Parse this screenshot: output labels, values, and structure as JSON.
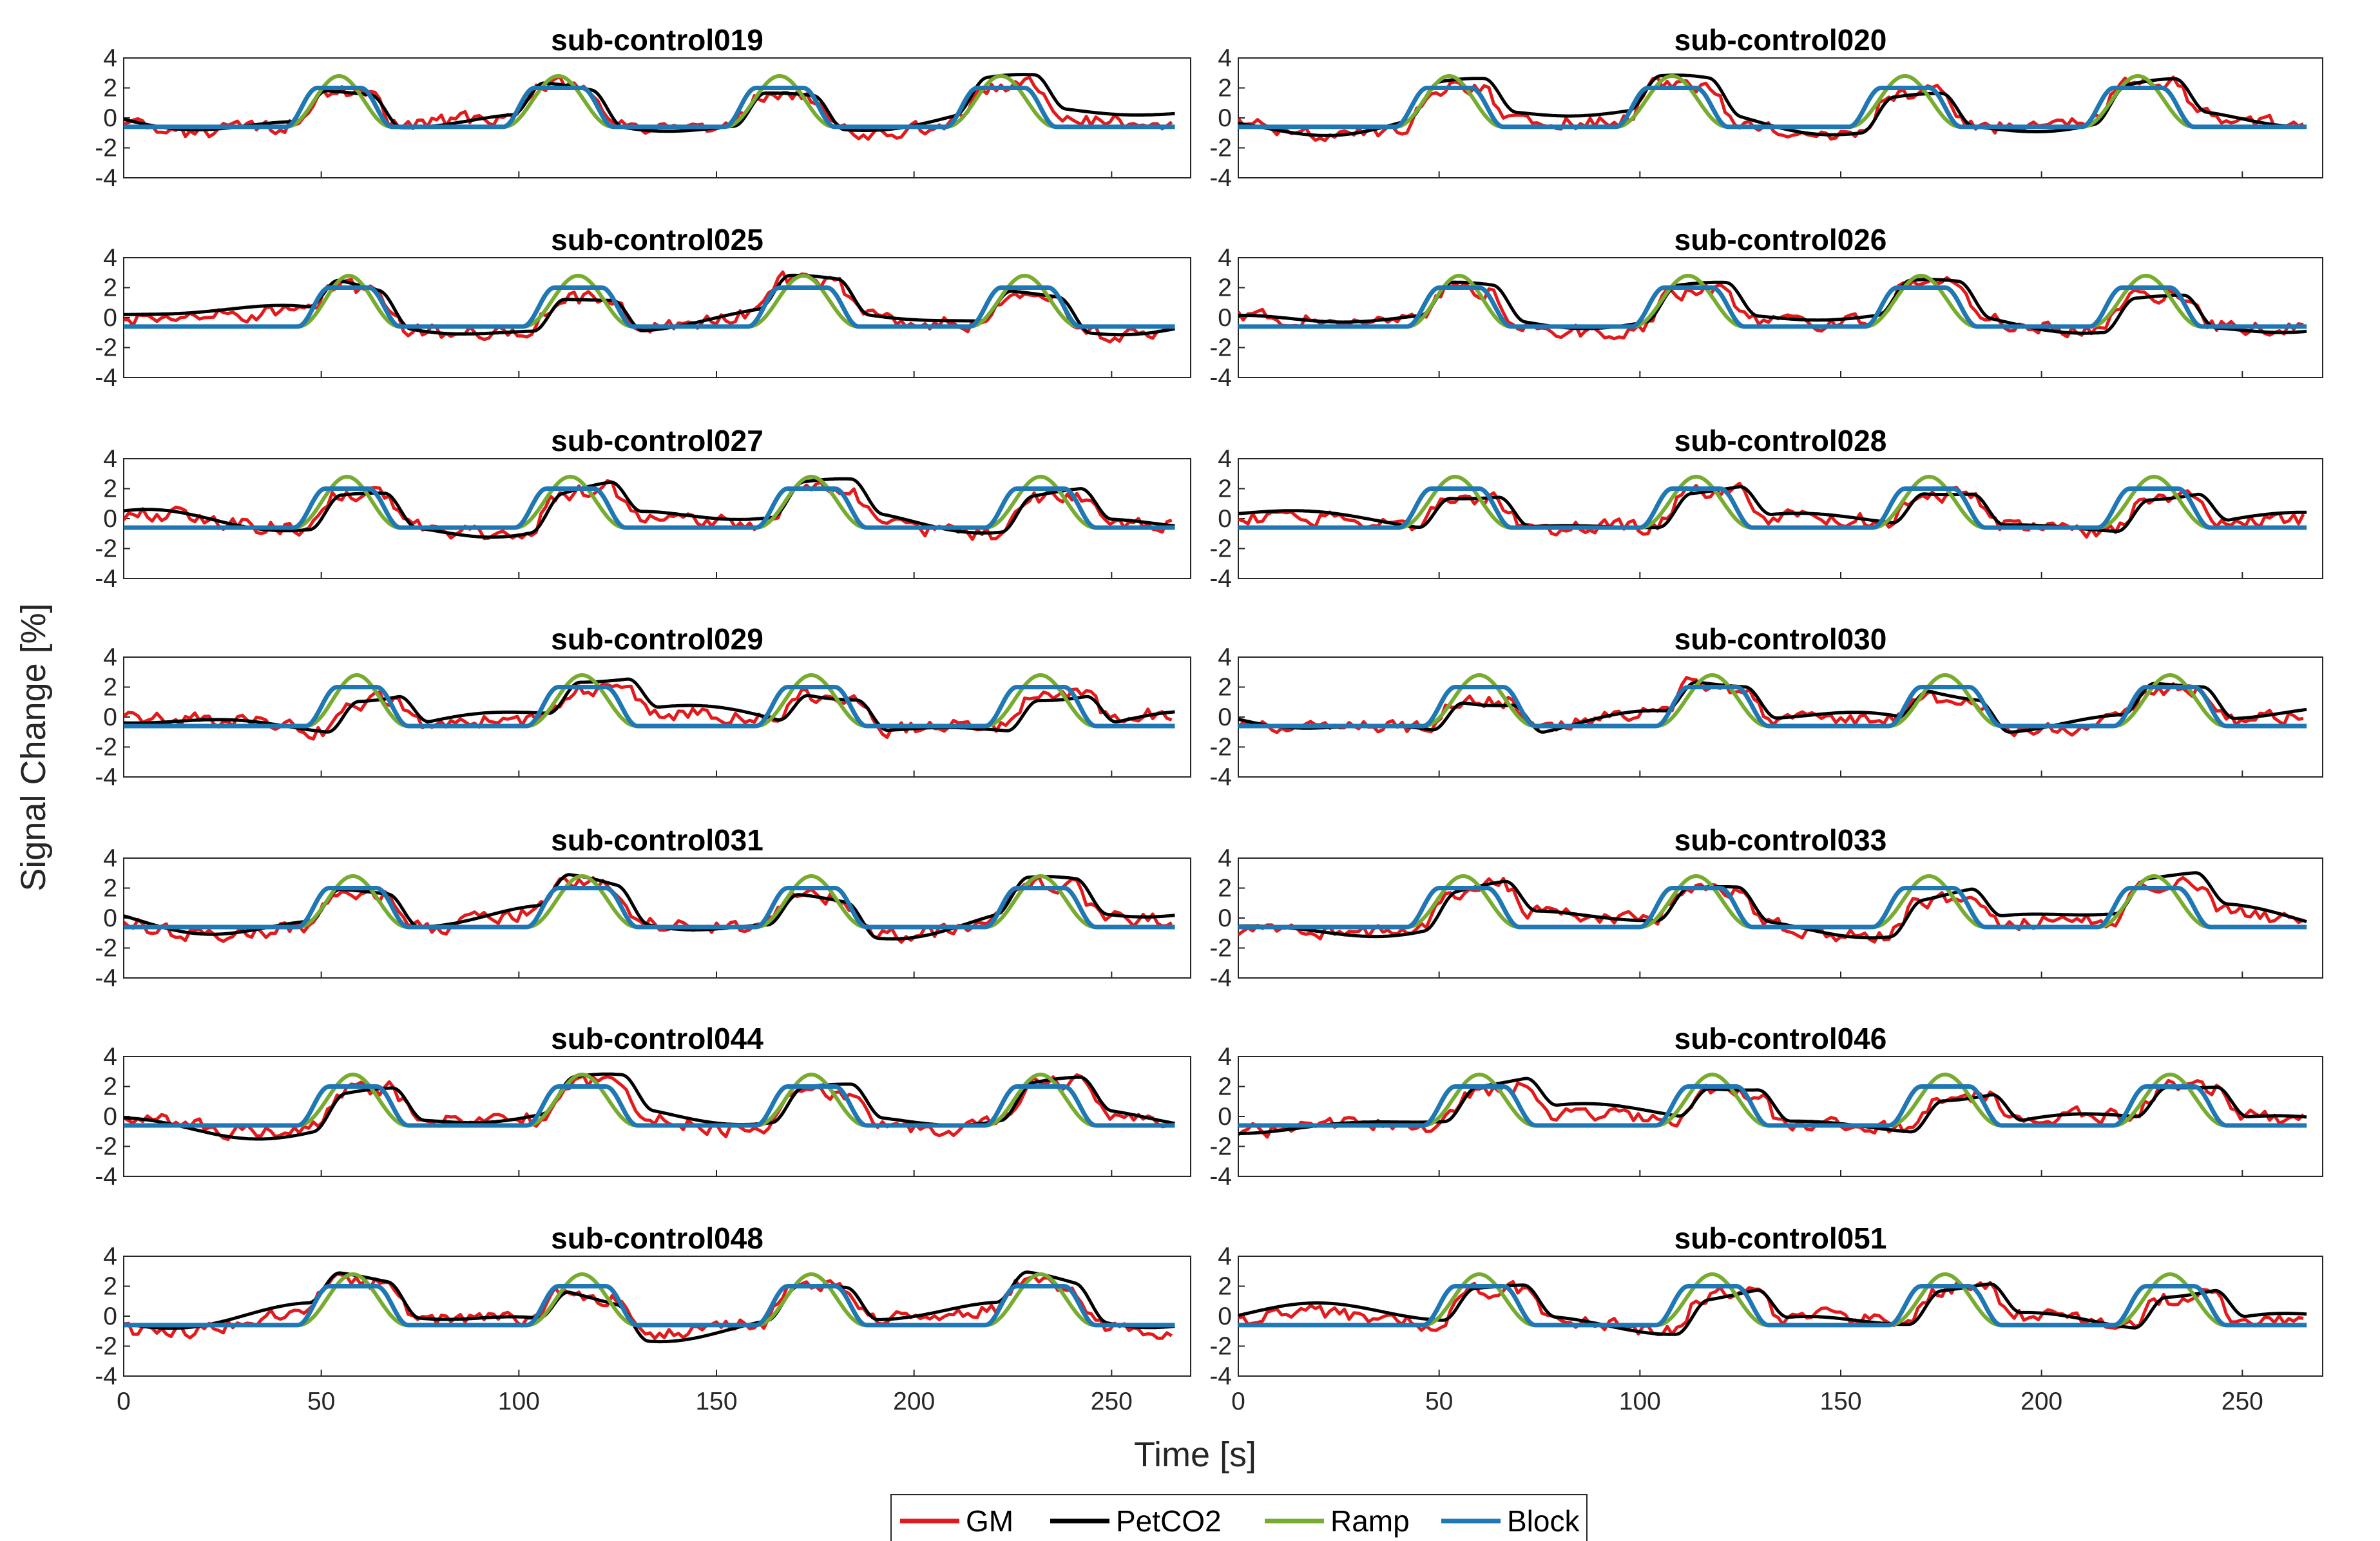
{
  "chart_data": {
    "type": "line",
    "title": "",
    "xlabel": "Time [s]",
    "ylabel": "Signal Change [%]",
    "xlim": [
      0,
      270
    ],
    "ylim": [
      -4,
      4
    ],
    "xticks": [
      "0",
      "50",
      "100",
      "150",
      "200",
      "250"
    ],
    "yticks": [
      "4",
      "2",
      "0",
      "-2",
      "-4"
    ],
    "series_names": [
      "GM",
      "PetCO2",
      "Ramp",
      "Block"
    ],
    "colors": {
      "GM": "#e31a1c",
      "PetCO2": "#000000",
      "Ramp": "#77ac30",
      "Block": "#1f77b4"
    },
    "legend_position": "bottom-center",
    "panels": [
      {
        "subject": "sub-control019",
        "blocks": [
          [
            45,
            64
          ],
          [
            100,
            120
          ],
          [
            156,
            176
          ],
          [
            212,
            232
          ]
        ],
        "seed": 19
      },
      {
        "subject": "sub-control020",
        "blocks": [
          [
            43,
            62
          ],
          [
            98,
            118
          ],
          [
            156,
            176
          ],
          [
            214,
            234
          ]
        ],
        "seed": 20
      },
      {
        "subject": "sub-control025",
        "blocks": [
          [
            48,
            66
          ],
          [
            105,
            125
          ],
          [
            162,
            182
          ],
          [
            218,
            238
          ]
        ],
        "seed": 25
      },
      {
        "subject": "sub-control026",
        "blocks": [
          [
            46,
            64
          ],
          [
            102,
            122
          ],
          [
            160,
            180
          ],
          [
            216,
            236
          ]
        ],
        "seed": 26
      },
      {
        "subject": "sub-control027",
        "blocks": [
          [
            47,
            66
          ],
          [
            103,
            123
          ],
          [
            164,
            184
          ],
          [
            222,
            242
          ]
        ],
        "seed": 27
      },
      {
        "subject": "sub-control028",
        "blocks": [
          [
            44,
            64
          ],
          [
            104,
            124
          ],
          [
            162,
            182
          ],
          [
            218,
            238
          ]
        ],
        "seed": 28
      },
      {
        "subject": "sub-control029",
        "blocks": [
          [
            50,
            68
          ],
          [
            106,
            126
          ],
          [
            164,
            184
          ],
          [
            222,
            242
          ]
        ],
        "seed": 29
      },
      {
        "subject": "sub-control030",
        "blocks": [
          [
            50,
            70
          ],
          [
            108,
            128
          ],
          [
            166,
            186
          ],
          [
            222,
            242
          ]
        ],
        "seed": 30
      },
      {
        "subject": "sub-control031",
        "blocks": [
          [
            48,
            68
          ],
          [
            106,
            126
          ],
          [
            164,
            184
          ],
          [
            222,
            242
          ]
        ],
        "seed": 31
      },
      {
        "subject": "sub-control033",
        "blocks": [
          [
            46,
            66
          ],
          [
            104,
            124
          ],
          [
            162,
            182
          ],
          [
            218,
            238
          ]
        ],
        "seed": 33
      },
      {
        "subject": "sub-control044",
        "blocks": [
          [
            48,
            68
          ],
          [
            106,
            126
          ],
          [
            164,
            184
          ],
          [
            222,
            242
          ]
        ],
        "seed": 44
      },
      {
        "subject": "sub-control046",
        "blocks": [
          [
            50,
            70
          ],
          [
            108,
            128
          ],
          [
            166,
            186
          ],
          [
            222,
            242
          ]
        ],
        "seed": 46
      },
      {
        "subject": "sub-control048",
        "blocks": [
          [
            48,
            68
          ],
          [
            106,
            126
          ],
          [
            164,
            184
          ],
          [
            222,
            242
          ]
        ],
        "seed": 48
      },
      {
        "subject": "sub-control051",
        "blocks": [
          [
            50,
            70
          ],
          [
            108,
            128
          ],
          [
            166,
            186
          ],
          [
            222,
            242
          ]
        ],
        "seed": 51
      }
    ]
  }
}
